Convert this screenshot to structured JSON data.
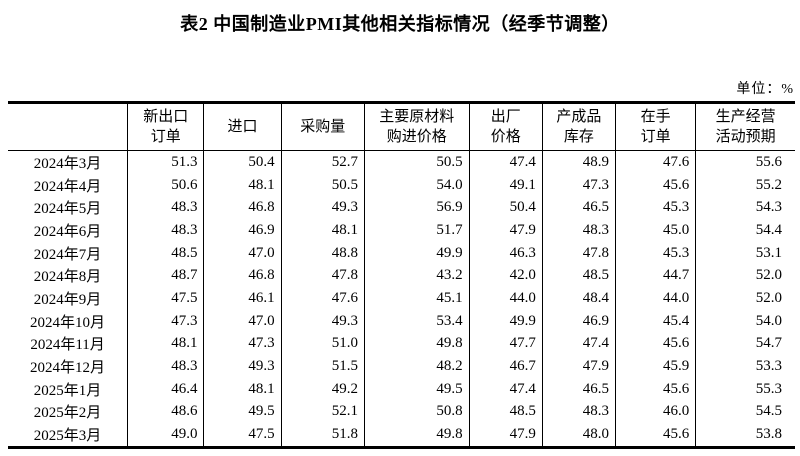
{
  "page": {
    "title": "表2 中国制造业PMI其他相关指标情况（经季节调整）",
    "unit_label": "单位：%"
  },
  "table": {
    "headers": [
      "",
      "新出口\n订单",
      "进口",
      "采购量",
      "主要原材料\n购进价格",
      "出厂\n价格",
      "产成品\n库存",
      "在手\n订单",
      "生产经营\n活动预期"
    ],
    "rows": [
      {
        "month": "2024年3月",
        "values": [
          "51.3",
          "50.4",
          "52.7",
          "50.5",
          "47.4",
          "48.9",
          "47.6",
          "55.6"
        ]
      },
      {
        "month": "2024年4月",
        "values": [
          "50.6",
          "48.1",
          "50.5",
          "54.0",
          "49.1",
          "47.3",
          "45.6",
          "55.2"
        ]
      },
      {
        "month": "2024年5月",
        "values": [
          "48.3",
          "46.8",
          "49.3",
          "56.9",
          "50.4",
          "46.5",
          "45.3",
          "54.3"
        ]
      },
      {
        "month": "2024年6月",
        "values": [
          "48.3",
          "46.9",
          "48.1",
          "51.7",
          "47.9",
          "48.3",
          "45.0",
          "54.4"
        ]
      },
      {
        "month": "2024年7月",
        "values": [
          "48.5",
          "47.0",
          "48.8",
          "49.9",
          "46.3",
          "47.8",
          "45.3",
          "53.1"
        ]
      },
      {
        "month": "2024年8月",
        "values": [
          "48.7",
          "46.8",
          "47.8",
          "43.2",
          "42.0",
          "48.5",
          "44.7",
          "52.0"
        ]
      },
      {
        "month": "2024年9月",
        "values": [
          "47.5",
          "46.1",
          "47.6",
          "45.1",
          "44.0",
          "48.4",
          "44.0",
          "52.0"
        ]
      },
      {
        "month": "2024年10月",
        "values": [
          "47.3",
          "47.0",
          "49.3",
          "53.4",
          "49.9",
          "46.9",
          "45.4",
          "54.0"
        ]
      },
      {
        "month": "2024年11月",
        "values": [
          "48.1",
          "47.3",
          "51.0",
          "49.8",
          "47.7",
          "47.4",
          "45.6",
          "54.7"
        ]
      },
      {
        "month": "2024年12月",
        "values": [
          "48.3",
          "49.3",
          "51.5",
          "48.2",
          "46.7",
          "47.9",
          "45.9",
          "53.3"
        ]
      },
      {
        "month": "2025年1月",
        "values": [
          "46.4",
          "48.1",
          "49.2",
          "49.5",
          "47.4",
          "46.5",
          "45.6",
          "55.3"
        ]
      },
      {
        "month": "2025年2月",
        "values": [
          "48.6",
          "49.5",
          "52.1",
          "50.8",
          "48.5",
          "48.3",
          "46.0",
          "54.5"
        ]
      },
      {
        "month": "2025年3月",
        "values": [
          "49.0",
          "47.5",
          "51.8",
          "49.8",
          "47.9",
          "48.0",
          "45.6",
          "53.8"
        ]
      }
    ]
  }
}
